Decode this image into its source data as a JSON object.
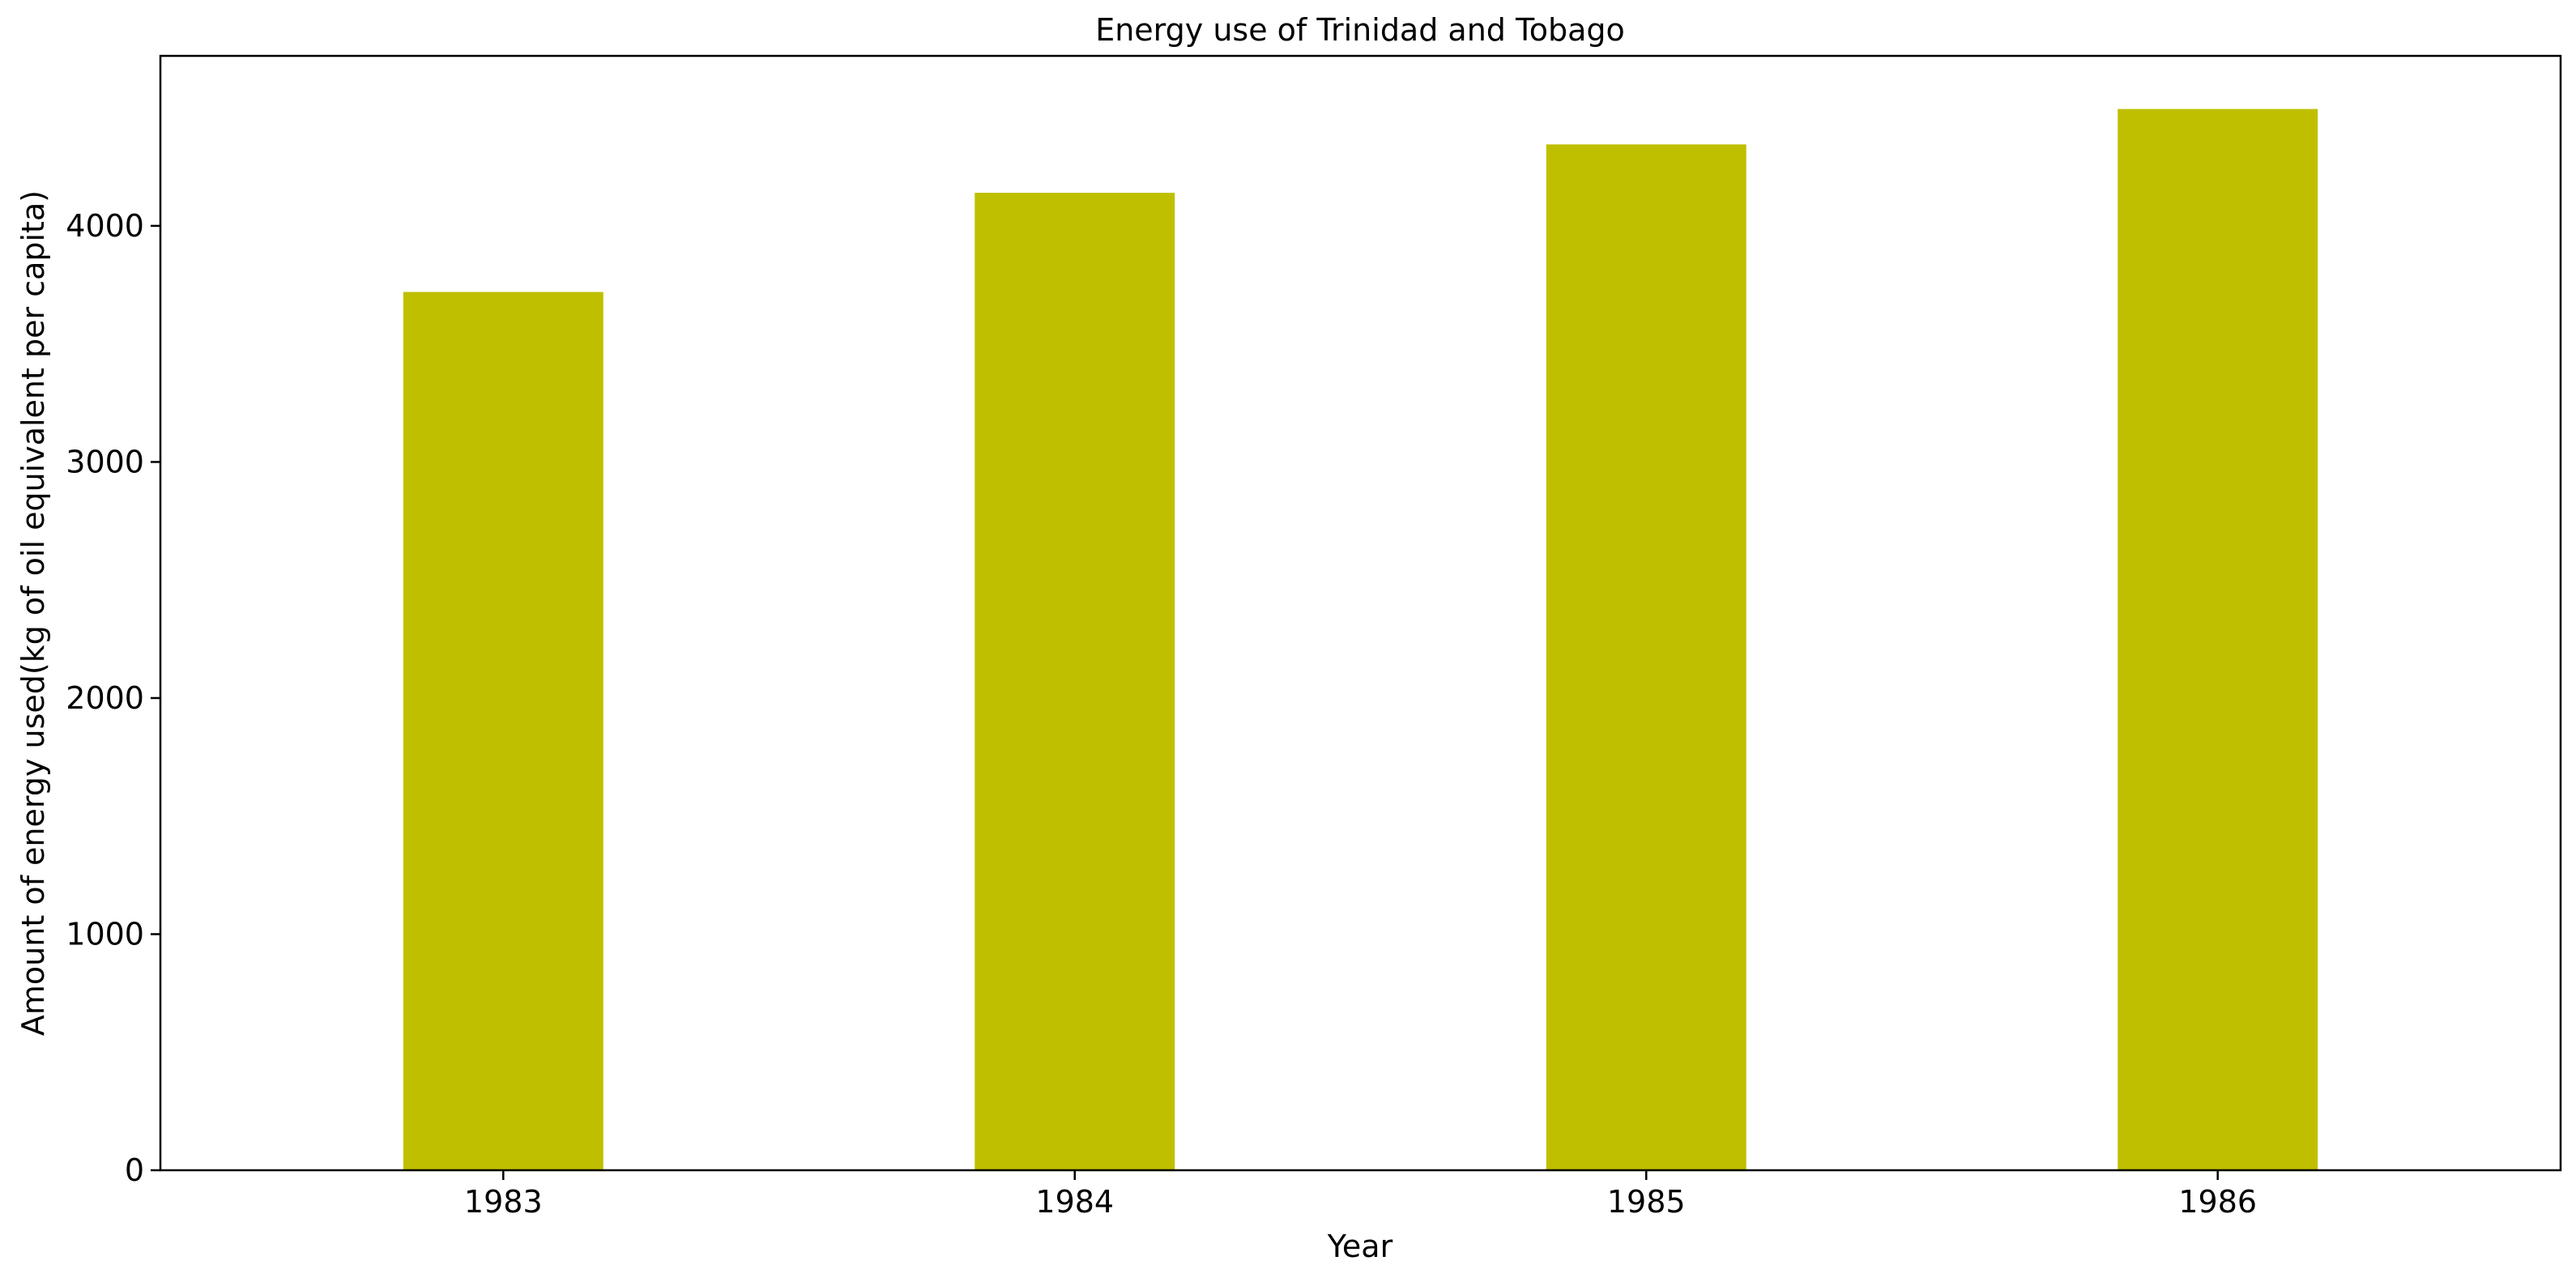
{
  "chart_data": {
    "type": "bar",
    "title": "Energy use of Trinidad and Tobago",
    "xlabel": "Year",
    "ylabel": "Amount of energy used(kg of oil equivalent per capita)",
    "categories": [
      "1983",
      "1984",
      "1985",
      "1986"
    ],
    "values": [
      3720,
      4140,
      4345,
      4495
    ],
    "ylim": [
      0,
      4720
    ],
    "yticks": [
      0,
      1000,
      2000,
      3000,
      4000
    ],
    "bar_color": "#bfbf00",
    "grid": false,
    "legend": false
  }
}
